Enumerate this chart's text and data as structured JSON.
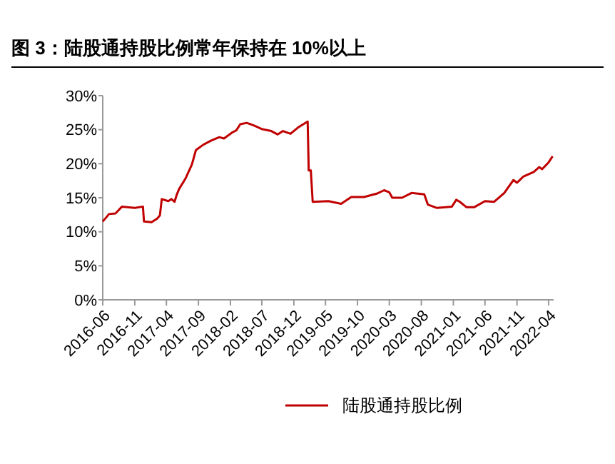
{
  "chart_data": {
    "type": "line",
    "title": "图 3：陆股通持股比例常年保持在 10%以上",
    "x": [
      "2016-06-01",
      "2016-07-01",
      "2016-08-01",
      "2016-09-01",
      "2016-11-01",
      "2016-12-10",
      "2016-12-15",
      "2017-01-20",
      "2017-02-15",
      "2017-03-01",
      "2017-03-10",
      "2017-04-10",
      "2017-04-25",
      "2017-05-10",
      "2017-05-20",
      "2017-06-01",
      "2017-07-01",
      "2017-08-01",
      "2017-08-20",
      "2017-09-25",
      "2017-11-01",
      "2017-12-10",
      "2018-01-01",
      "2018-02-10",
      "2018-03-01",
      "2018-03-20",
      "2018-04-20",
      "2018-05-25",
      "2018-06-30",
      "2018-08-15",
      "2018-09-15",
      "2018-10-10",
      "2018-11-15",
      "2018-12-20",
      "2019-02-05",
      "2019-02-10",
      "2019-02-20",
      "2019-03-01",
      "2019-05-15",
      "2019-07-15",
      "2019-09-01",
      "2019-11-01",
      "2020-01-01",
      "2020-02-05",
      "2020-03-01",
      "2020-03-15",
      "2020-05-01",
      "2020-06-15",
      "2020-08-15",
      "2020-09-01",
      "2020-10-15",
      "2020-12-25",
      "2021-01-15",
      "2021-02-01",
      "2021-03-05",
      "2021-04-10",
      "2021-06-01",
      "2021-07-15",
      "2021-09-01",
      "2021-10-15",
      "2021-11-01",
      "2021-12-01",
      "2022-01-20",
      "2022-02-15",
      "2022-03-01",
      "2022-04-01",
      "2022-04-20"
    ],
    "series": [
      {
        "name": "陆股通持股比例",
        "color": "#c00000",
        "values": [
          11.5,
          12.6,
          12.7,
          13.7,
          13.5,
          13.7,
          11.5,
          11.4,
          11.9,
          12.4,
          14.8,
          14.5,
          14.8,
          14.4,
          15.4,
          16.3,
          17.8,
          19.9,
          22.0,
          22.8,
          23.4,
          23.9,
          23.7,
          24.6,
          24.9,
          25.8,
          26.0,
          25.6,
          25.1,
          24.8,
          24.3,
          24.8,
          24.4,
          25.3,
          26.2,
          19.0,
          19.0,
          14.4,
          14.5,
          14.1,
          15.1,
          15.1,
          15.6,
          16.1,
          15.8,
          15.0,
          15.0,
          15.7,
          15.5,
          14.0,
          13.5,
          13.7,
          14.7,
          14.4,
          13.6,
          13.6,
          14.5,
          14.4,
          15.7,
          17.6,
          17.2,
          18.1,
          18.8,
          19.5,
          19.2,
          20.2,
          21.1
        ]
      }
    ],
    "xlim": [
      "2016-06-01",
      "2022-04-25"
    ],
    "xticks": [
      "2016-06",
      "2016-11",
      "2017-04",
      "2017-09",
      "2018-02",
      "2018-07",
      "2018-12",
      "2019-05",
      "2019-10",
      "2020-03",
      "2020-08",
      "2021-01",
      "2021-06",
      "2021-11",
      "2022-04"
    ],
    "ylim": [
      0,
      30
    ],
    "yticks": [
      {
        "value": 0,
        "label": "0%"
      },
      {
        "value": 5,
        "label": "5%"
      },
      {
        "value": 10,
        "label": "10%"
      },
      {
        "value": 15,
        "label": "15%"
      },
      {
        "value": 20,
        "label": "20%"
      },
      {
        "value": 25,
        "label": "25%"
      },
      {
        "value": 30,
        "label": "30%"
      }
    ],
    "grid": false,
    "legend": "bottom",
    "marker": "none",
    "line_style": "solid"
  }
}
